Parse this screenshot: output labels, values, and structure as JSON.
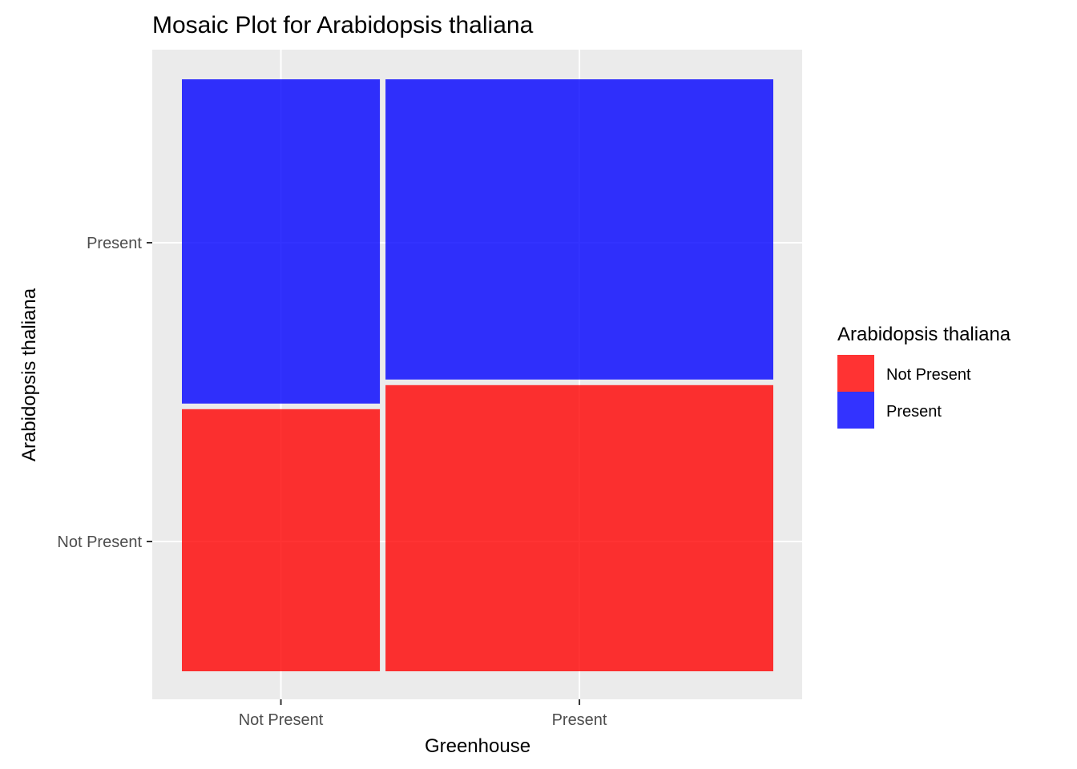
{
  "chart_data": {
    "type": "mosaic",
    "title": "Mosaic Plot for Arabidopsis thaliana",
    "xlabel": "Greenhouse",
    "ylabel": "Arabidopsis thaliana",
    "x_categories": [
      "Not Present",
      "Present"
    ],
    "y_categories": [
      "Not Present",
      "Present"
    ],
    "column_proportions": [
      0.338,
      0.662
    ],
    "cells": [
      {
        "x": "Not Present",
        "fill": "Present",
        "proportion": 0.553
      },
      {
        "x": "Not Present",
        "fill": "Not Present",
        "proportion": 0.447
      },
      {
        "x": "Present",
        "fill": "Present",
        "proportion": 0.512
      },
      {
        "x": "Present",
        "fill": "Not Present",
        "proportion": 0.488
      }
    ],
    "legend": {
      "title": "Arabidopsis thaliana",
      "position": "right",
      "items": [
        {
          "label": "Not Present",
          "color": "#FF0000"
        },
        {
          "label": "Present",
          "color": "#0000FF"
        }
      ]
    },
    "colors": {
      "Not Present": "#FF0000",
      "Present": "#0000FF",
      "cell_opacity": 0.8,
      "panel_background": "#EBEBEB",
      "grid": "#FFFFFF"
    },
    "grid": true
  }
}
